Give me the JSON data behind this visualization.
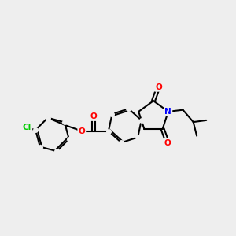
{
  "bg_color": "#eeeeee",
  "bond_color": "#000000",
  "atom_colors": {
    "O": "#ff0000",
    "N": "#0000ff",
    "Cl": "#00cc00",
    "C": "#000000"
  },
  "font_size": 7.5
}
